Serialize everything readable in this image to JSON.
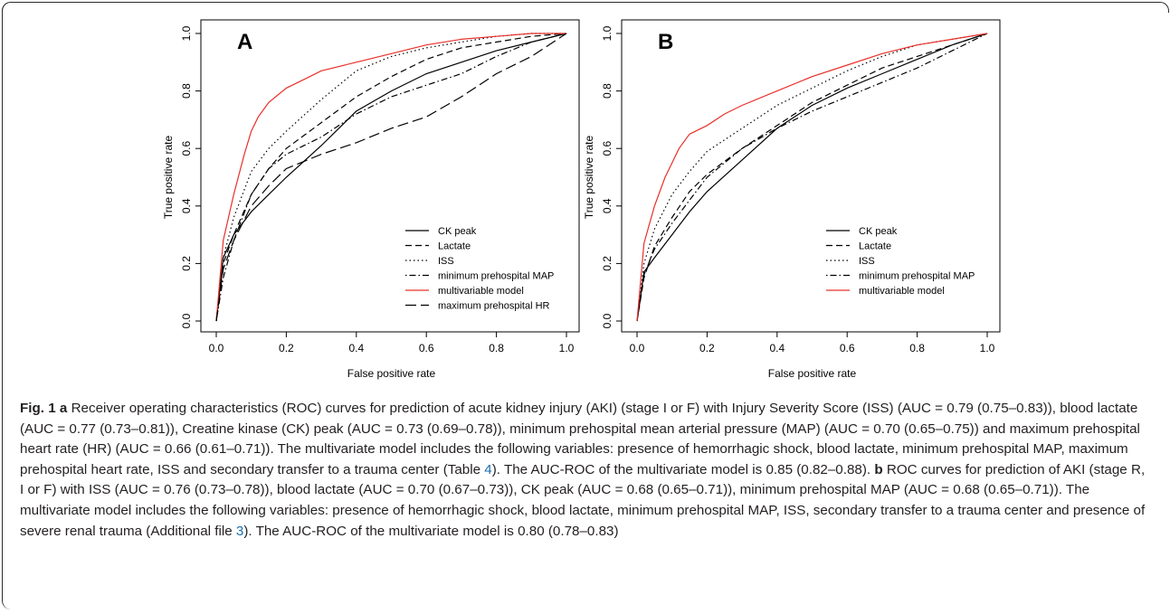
{
  "panels": [
    {
      "letter": "A",
      "xlabel": "False positive rate",
      "ylabel": "True positive rate",
      "xticks": [
        "0.0",
        "0.2",
        "0.4",
        "0.6",
        "0.8",
        "1.0"
      ],
      "yticks": [
        "0.0",
        "0.2",
        "0.4",
        "0.6",
        "0.8",
        "1.0"
      ],
      "legend": [
        "CK peak",
        "Lactate",
        "ISS",
        "minimum prehospital MAP",
        "multivariable model",
        "maximum prehospital HR"
      ]
    },
    {
      "letter": "B",
      "xlabel": "False positive rate",
      "ylabel": "True positive rate",
      "xticks": [
        "0.0",
        "0.2",
        "0.4",
        "0.6",
        "0.8",
        "1.0"
      ],
      "yticks": [
        "0.0",
        "0.2",
        "0.4",
        "0.6",
        "0.8",
        "1.0"
      ],
      "legend": [
        "CK peak",
        "Lactate",
        "ISS",
        "minimum prehospital MAP",
        "multivariable model"
      ]
    }
  ],
  "chart_data": [
    {
      "type": "line",
      "panel": "A",
      "xlabel": "False positive rate",
      "ylabel": "True positive rate",
      "xlim": [
        0,
        1
      ],
      "ylim": [
        0,
        1
      ],
      "legend_position": "bottom-right",
      "series": [
        {
          "name": "CK peak",
          "color": "#000000",
          "dash": "solid",
          "x": [
            0,
            0.02,
            0.05,
            0.1,
            0.15,
            0.2,
            0.3,
            0.4,
            0.5,
            0.6,
            0.7,
            0.8,
            0.9,
            1.0
          ],
          "y": [
            0,
            0.22,
            0.3,
            0.38,
            0.44,
            0.5,
            0.61,
            0.73,
            0.8,
            0.86,
            0.9,
            0.94,
            0.97,
            1.0
          ]
        },
        {
          "name": "Lactate",
          "color": "#000000",
          "dash": "dashed",
          "x": [
            0,
            0.02,
            0.05,
            0.1,
            0.15,
            0.2,
            0.3,
            0.4,
            0.5,
            0.6,
            0.7,
            0.8,
            0.9,
            1.0
          ],
          "y": [
            0,
            0.2,
            0.3,
            0.44,
            0.53,
            0.6,
            0.69,
            0.78,
            0.85,
            0.91,
            0.95,
            0.97,
            0.99,
            1.0
          ]
        },
        {
          "name": "ISS",
          "color": "#000000",
          "dash": "dotted",
          "x": [
            0,
            0.02,
            0.05,
            0.1,
            0.15,
            0.2,
            0.3,
            0.4,
            0.5,
            0.6,
            0.7,
            0.8,
            0.9,
            1.0
          ],
          "y": [
            0,
            0.22,
            0.36,
            0.52,
            0.6,
            0.66,
            0.77,
            0.87,
            0.92,
            0.95,
            0.97,
            0.99,
            1.0,
            1.0
          ]
        },
        {
          "name": "minimum prehospital MAP",
          "color": "#000000",
          "dash": "dotdash",
          "x": [
            0,
            0.02,
            0.05,
            0.1,
            0.15,
            0.2,
            0.3,
            0.4,
            0.5,
            0.6,
            0.7,
            0.8,
            0.9,
            1.0
          ],
          "y": [
            0,
            0.15,
            0.28,
            0.44,
            0.53,
            0.58,
            0.64,
            0.72,
            0.78,
            0.82,
            0.86,
            0.92,
            0.97,
            1.0
          ]
        },
        {
          "name": "multivariable model",
          "color": "#e8302a",
          "dash": "solid",
          "x": [
            0,
            0.02,
            0.05,
            0.08,
            0.1,
            0.12,
            0.15,
            0.2,
            0.25,
            0.3,
            0.4,
            0.5,
            0.6,
            0.7,
            0.8,
            0.9,
            1.0
          ],
          "y": [
            0,
            0.28,
            0.44,
            0.58,
            0.66,
            0.71,
            0.76,
            0.81,
            0.84,
            0.87,
            0.9,
            0.93,
            0.96,
            0.98,
            0.99,
            1.0,
            1.0
          ]
        },
        {
          "name": "maximum prehospital HR",
          "color": "#000000",
          "dash": "longdash",
          "x": [
            0,
            0.02,
            0.05,
            0.1,
            0.15,
            0.2,
            0.3,
            0.4,
            0.5,
            0.6,
            0.7,
            0.8,
            0.9,
            1.0
          ],
          "y": [
            0,
            0.18,
            0.28,
            0.4,
            0.47,
            0.53,
            0.58,
            0.62,
            0.67,
            0.71,
            0.78,
            0.86,
            0.92,
            1.0
          ]
        }
      ]
    },
    {
      "type": "line",
      "panel": "B",
      "xlabel": "False positive rate",
      "ylabel": "True positive rate",
      "xlim": [
        0,
        1
      ],
      "ylim": [
        0,
        1
      ],
      "legend_position": "bottom-right",
      "series": [
        {
          "name": "CK peak",
          "color": "#000000",
          "dash": "solid",
          "x": [
            0,
            0.02,
            0.05,
            0.1,
            0.15,
            0.2,
            0.3,
            0.4,
            0.5,
            0.6,
            0.7,
            0.8,
            0.9,
            1.0
          ],
          "y": [
            0,
            0.17,
            0.22,
            0.3,
            0.38,
            0.45,
            0.56,
            0.67,
            0.75,
            0.81,
            0.86,
            0.91,
            0.96,
            1.0
          ]
        },
        {
          "name": "Lactate",
          "color": "#000000",
          "dash": "dashed",
          "x": [
            0,
            0.02,
            0.05,
            0.1,
            0.15,
            0.2,
            0.3,
            0.4,
            0.5,
            0.6,
            0.7,
            0.8,
            0.9,
            1.0
          ],
          "y": [
            0,
            0.15,
            0.26,
            0.36,
            0.45,
            0.51,
            0.6,
            0.68,
            0.76,
            0.82,
            0.88,
            0.92,
            0.96,
            1.0
          ]
        },
        {
          "name": "ISS",
          "color": "#000000",
          "dash": "dotted",
          "x": [
            0,
            0.02,
            0.05,
            0.1,
            0.15,
            0.2,
            0.3,
            0.4,
            0.5,
            0.6,
            0.7,
            0.8,
            0.9,
            1.0
          ],
          "y": [
            0,
            0.2,
            0.32,
            0.44,
            0.52,
            0.59,
            0.67,
            0.75,
            0.81,
            0.87,
            0.92,
            0.96,
            0.98,
            1.0
          ]
        },
        {
          "name": "minimum prehospital MAP",
          "color": "#000000",
          "dash": "dotdash",
          "x": [
            0,
            0.02,
            0.05,
            0.1,
            0.15,
            0.2,
            0.3,
            0.4,
            0.5,
            0.6,
            0.7,
            0.8,
            0.9,
            1.0
          ],
          "y": [
            0,
            0.16,
            0.25,
            0.34,
            0.42,
            0.5,
            0.6,
            0.67,
            0.73,
            0.78,
            0.83,
            0.88,
            0.94,
            1.0
          ]
        },
        {
          "name": "multivariable model",
          "color": "#e8302a",
          "dash": "solid",
          "x": [
            0,
            0.02,
            0.05,
            0.08,
            0.1,
            0.12,
            0.15,
            0.2,
            0.25,
            0.3,
            0.4,
            0.5,
            0.6,
            0.7,
            0.8,
            0.9,
            1.0
          ],
          "y": [
            0,
            0.27,
            0.4,
            0.5,
            0.55,
            0.6,
            0.65,
            0.68,
            0.72,
            0.75,
            0.8,
            0.85,
            0.89,
            0.93,
            0.96,
            0.98,
            1.0
          ]
        }
      ]
    }
  ],
  "caption": {
    "label": "Fig. 1",
    "a_letter": "a",
    "a_text": " Receiver operating characteristics (ROC) curves for prediction of acute kidney injury (AKI) (stage I or F) with Injury Severity Score (ISS) (AUC = 0.79 (0.75–0.83)), blood lactate (AUC = 0.77 (0.73–0.81)), Creatine kinase (CK) peak (AUC = 0.73 (0.69–0.78)), minimum prehospital mean arterial pressure (MAP) (AUC = 0.70 (0.65–0.75)) and maximum prehospital heart rate (HR) (AUC = 0.66 (0.61–0.71)). The multivariate model includes the following variables: presence of hemorrhagic shock, blood lactate, minimum prehospital MAP, maximum prehospital heart rate, ISS and secondary transfer to a trauma center (Table ",
    "a_table_ref": "4",
    "a_text_end": "). The AUC-ROC of the multivariate model is 0.85 (0.82–0.88). ",
    "b_letter": "b",
    "b_text": " ROC curves for prediction of AKI (stage R, I or F) with ISS (AUC = 0.76 (0.73–0.78)), blood lactate (AUC = 0.70 (0.67–0.73)), CK peak (AUC = 0.68 (0.65–0.71)), minimum prehospital MAP (AUC = 0.68 (0.65–0.71)). The multivariate model includes the following variables: presence of hemorrhagic shock, blood lactate, minimum prehospital MAP, ISS, secondary transfer to a trauma center and presence of severe renal trauma (Additional file ",
    "b_file_ref": "3",
    "b_text_end": "). The AUC-ROC of the multivariate model is 0.80 (0.78–0.83)"
  }
}
